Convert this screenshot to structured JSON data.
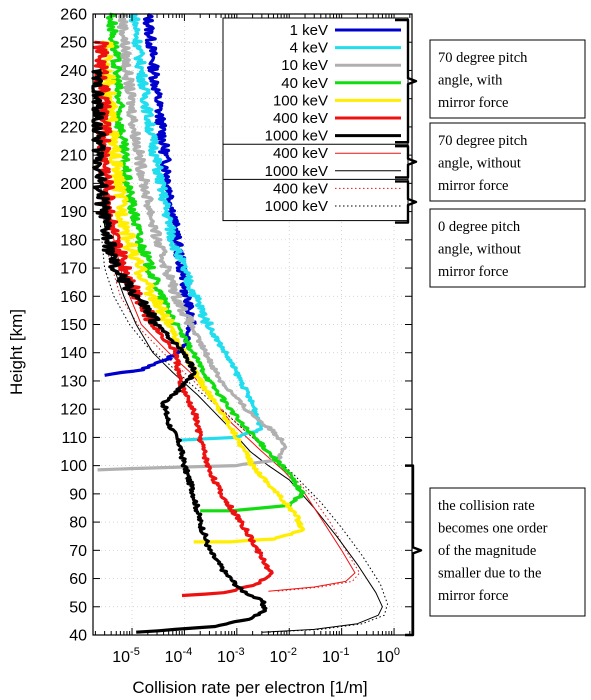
{
  "chart_data": {
    "type": "line",
    "xlabel": "Collision rate per electron [1/m]",
    "ylabel": "Height [km]",
    "x_scale": "log",
    "xlim": [
      1.8e-06,
      2.2
    ],
    "ylim": [
      40,
      260
    ],
    "x_ticks": [
      {
        "value": 1e-05,
        "mantissa": "10",
        "exponent": "-5"
      },
      {
        "value": 0.0001,
        "mantissa": "10",
        "exponent": "-4"
      },
      {
        "value": 0.001,
        "mantissa": "10",
        "exponent": "-3"
      },
      {
        "value": 0.01,
        "mantissa": "10",
        "exponent": "-2"
      },
      {
        "value": 0.1,
        "mantissa": "10",
        "exponent": "-1"
      },
      {
        "value": 1,
        "mantissa": "10",
        "exponent": "0"
      }
    ],
    "y_ticks": [
      "40",
      "50",
      "60",
      "70",
      "80",
      "90",
      "100",
      "110",
      "120",
      "130",
      "140",
      "150",
      "160",
      "170",
      "180",
      "190",
      "200",
      "210",
      "220",
      "230",
      "240",
      "250",
      "260"
    ],
    "grid": "dotted",
    "legend_position": "top-right",
    "series": [
      {
        "name": "1 keV",
        "group": "70 degree pitch angle, with mirror force",
        "color": "#0000cc",
        "style": "thick",
        "noisy": true,
        "points": [
          [
            2e-05,
            260
          ],
          [
            2.6e-05,
            240
          ],
          [
            3.6e-05,
            220
          ],
          [
            5e-05,
            200
          ],
          [
            7e-05,
            180
          ],
          [
            0.0001,
            165
          ],
          [
            0.00013,
            150
          ],
          [
            0.00011,
            143
          ],
          [
            5e-05,
            138
          ],
          [
            1.5e-05,
            134
          ],
          [
            3e-06,
            132
          ]
        ]
      },
      {
        "name": "4 keV",
        "group": "70 degree pitch angle, with mirror force",
        "color": "#22ddee",
        "style": "thick",
        "noisy": true,
        "points": [
          [
            1.1e-05,
            260
          ],
          [
            1.5e-05,
            240
          ],
          [
            2.2e-05,
            220
          ],
          [
            3.5e-05,
            200
          ],
          [
            6e-05,
            180
          ],
          [
            0.00012,
            165
          ],
          [
            0.00028,
            150
          ],
          [
            0.0006,
            140
          ],
          [
            0.0012,
            130
          ],
          [
            0.0022,
            120
          ],
          [
            0.003,
            113
          ],
          [
            0.001,
            110
          ],
          [
            8e-05,
            109
          ]
        ]
      },
      {
        "name": "10 keV",
        "group": "70 degree pitch angle, with mirror force",
        "color": "#b0b0b0",
        "style": "thick",
        "noisy": true,
        "points": [
          [
            6.5e-06,
            260
          ],
          [
            8e-06,
            240
          ],
          [
            1.1e-05,
            220
          ],
          [
            1.7e-05,
            200
          ],
          [
            3e-05,
            180
          ],
          [
            7e-05,
            160
          ],
          [
            0.00018,
            145
          ],
          [
            0.0005,
            130
          ],
          [
            0.0015,
            120
          ],
          [
            0.005,
            112
          ],
          [
            0.009,
            107
          ],
          [
            0.006,
            102
          ],
          [
            0.0009,
            100
          ],
          [
            1e-05,
            99
          ],
          [
            2.2e-06,
            98.5
          ]
        ]
      },
      {
        "name": "40 keV",
        "group": "70 degree pitch angle, with mirror force",
        "color": "#11dd11",
        "style": "thick",
        "noisy": true,
        "points": [
          [
            4e-06,
            260
          ],
          [
            5e-06,
            240
          ],
          [
            6e-06,
            220
          ],
          [
            8e-06,
            200
          ],
          [
            1.4e-05,
            180
          ],
          [
            3.5e-05,
            160
          ],
          [
            0.0001,
            145
          ],
          [
            0.0003,
            130
          ],
          [
            0.0012,
            115
          ],
          [
            0.004,
            105
          ],
          [
            0.01,
            97
          ],
          [
            0.018,
            90
          ],
          [
            0.01,
            86
          ],
          [
            0.0008,
            84
          ],
          [
            0.0002,
            84
          ]
        ]
      },
      {
        "name": "100 keV",
        "group": "70 degree pitch angle, with mirror force",
        "color": "#ffee00",
        "style": "thick",
        "noisy": true,
        "points": [
          [
            3.2e-06,
            250
          ],
          [
            3.6e-06,
            230
          ],
          [
            4.5e-06,
            210
          ],
          [
            6.5e-06,
            190
          ],
          [
            1e-05,
            175
          ],
          [
            2.5e-05,
            160
          ],
          [
            7e-05,
            145
          ],
          [
            0.0002,
            130
          ],
          [
            0.0007,
            115
          ],
          [
            0.002,
            100
          ],
          [
            0.006,
            90
          ],
          [
            0.014,
            82
          ],
          [
            0.018,
            77
          ],
          [
            0.005,
            74
          ],
          [
            0.0007,
            73
          ],
          [
            0.00015,
            73
          ]
        ]
      },
      {
        "name": "400 keV",
        "group": "70 degree pitch angle, with mirror force",
        "color": "#ee1111",
        "style": "thick",
        "noisy": true,
        "points": [
          [
            2.5e-06,
            250
          ],
          [
            2.8e-06,
            230
          ],
          [
            3e-06,
            210
          ],
          [
            3.5e-06,
            195
          ],
          [
            4.5e-06,
            180
          ],
          [
            1e-05,
            165
          ],
          [
            2.5e-05,
            150
          ],
          [
            7e-05,
            140
          ],
          [
            8e-05,
            130
          ],
          [
            0.00016,
            118
          ],
          [
            0.0002,
            110
          ],
          [
            0.00028,
            100
          ],
          [
            0.0005,
            90
          ],
          [
            0.0012,
            80
          ],
          [
            0.0025,
            70
          ],
          [
            0.0045,
            62
          ],
          [
            0.0025,
            58
          ],
          [
            0.0006,
            55
          ],
          [
            9e-05,
            54
          ]
        ]
      },
      {
        "name": "1000 keV",
        "group": "70 degree pitch angle, with mirror force",
        "color": "#000000",
        "style": "thick",
        "noisy": true,
        "points": [
          [
            2e-06,
            240
          ],
          [
            2.2e-06,
            220
          ],
          [
            2.5e-06,
            200
          ],
          [
            3e-06,
            185
          ],
          [
            4.5e-06,
            170
          ],
          [
            1.2e-05,
            160
          ],
          [
            3e-05,
            150
          ],
          [
            0.0001,
            140
          ],
          [
            0.00016,
            133
          ],
          [
            8e-05,
            127
          ],
          [
            4e-05,
            122
          ],
          [
            5e-05,
            115
          ],
          [
            8e-05,
            108
          ],
          [
            0.0001,
            100
          ],
          [
            0.00015,
            90
          ],
          [
            0.0002,
            80
          ],
          [
            0.0003,
            70
          ],
          [
            0.0006,
            62
          ],
          [
            0.0012,
            56
          ],
          [
            0.003,
            52
          ],
          [
            0.0035,
            49
          ],
          [
            0.002,
            46
          ],
          [
            0.0004,
            43
          ],
          [
            1.2e-05,
            41
          ]
        ]
      },
      {
        "name": "400 keV",
        "group": "70 degree pitch angle, without mirror force",
        "color": "#ee1111",
        "style": "thin",
        "noisy": false,
        "points": [
          [
            3e-06,
            210
          ],
          [
            3.5e-06,
            195
          ],
          [
            4.5e-06,
            180
          ],
          [
            7e-06,
            165
          ],
          [
            1.5e-05,
            150
          ],
          [
            5e-05,
            140
          ],
          [
            0.00013,
            133
          ],
          [
            0.0003,
            125
          ],
          [
            0.0008,
            115
          ],
          [
            0.003,
            105
          ],
          [
            0.008,
            98
          ],
          [
            0.02,
            90
          ],
          [
            0.045,
            80
          ],
          [
            0.1,
            70
          ],
          [
            0.18,
            62
          ],
          [
            0.12,
            59
          ],
          [
            0.03,
            57
          ],
          [
            0.004,
            55.5
          ]
        ]
      },
      {
        "name": "1000 keV",
        "group": "70 degree pitch angle, without mirror force",
        "color": "#000000",
        "style": "thin",
        "noisy": false,
        "points": [
          [
            2.5e-06,
            200
          ],
          [
            3e-06,
            185
          ],
          [
            4.5e-06,
            170
          ],
          [
            7e-06,
            160
          ],
          [
            1.2e-05,
            150
          ],
          [
            2.5e-05,
            140
          ],
          [
            6e-05,
            133
          ],
          [
            0.00018,
            125
          ],
          [
            0.0006,
            115
          ],
          [
            0.0018,
            105
          ],
          [
            0.004,
            100
          ],
          [
            0.01,
            95
          ],
          [
            0.03,
            85
          ],
          [
            0.08,
            75
          ],
          [
            0.2,
            65
          ],
          [
            0.45,
            55
          ],
          [
            0.6,
            50
          ],
          [
            0.5,
            47
          ],
          [
            0.2,
            44
          ],
          [
            0.03,
            42
          ],
          [
            0.003,
            41
          ]
        ]
      },
      {
        "name": "400 keV",
        "group": "0 degree pitch angle, without mirror force",
        "color": "#ee1111",
        "style": "dotted",
        "noisy": false,
        "points": [
          [
            2.8e-06,
            190
          ],
          [
            3.5e-06,
            175
          ],
          [
            6e-06,
            160
          ],
          [
            1.5e-05,
            148
          ],
          [
            5e-05,
            138
          ],
          [
            0.00015,
            130
          ],
          [
            0.0004,
            122
          ],
          [
            0.001,
            115
          ],
          [
            0.004,
            105
          ],
          [
            0.012,
            96
          ],
          [
            0.03,
            88
          ],
          [
            0.06,
            80
          ],
          [
            0.12,
            70
          ],
          [
            0.22,
            62
          ],
          [
            0.16,
            59
          ],
          [
            0.04,
            57
          ],
          [
            0.006,
            55.5
          ]
        ]
      },
      {
        "name": "1000 keV",
        "group": "0 degree pitch angle, without mirror force",
        "color": "#000000",
        "style": "dotted",
        "noisy": false,
        "points": [
          [
            2.5e-06,
            185
          ],
          [
            3e-06,
            170
          ],
          [
            4.5e-06,
            160
          ],
          [
            9e-06,
            150
          ],
          [
            2e-05,
            142
          ],
          [
            5e-05,
            136
          ],
          [
            0.00015,
            128
          ],
          [
            0.0005,
            120
          ],
          [
            0.0015,
            112
          ],
          [
            0.004,
            105
          ],
          [
            0.012,
            97
          ],
          [
            0.04,
            87
          ],
          [
            0.1,
            78
          ],
          [
            0.25,
            68
          ],
          [
            0.55,
            58
          ],
          [
            0.75,
            51
          ],
          [
            0.65,
            47
          ],
          [
            0.25,
            44
          ],
          [
            0.04,
            42
          ],
          [
            0.004,
            41
          ]
        ]
      }
    ],
    "annotations": [
      {
        "group_key": "70 degree pitch angle, with mirror force",
        "lines": [
          "70 degree pitch",
          "angle, with",
          "mirror force"
        ]
      },
      {
        "group_key": "70 degree pitch angle, without mirror force",
        "lines": [
          "70 degree pitch",
          "angle, without",
          "mirror force"
        ]
      },
      {
        "group_key": "0 degree pitch angle, without mirror force",
        "lines": [
          "0 degree pitch",
          "angle, without",
          "mirror force"
        ]
      },
      {
        "group_key": "below 100 km",
        "lines": [
          "the collision rate",
          "becomes one order",
          "of the magnitude",
          "smaller due to the",
          "mirror force"
        ]
      }
    ]
  }
}
